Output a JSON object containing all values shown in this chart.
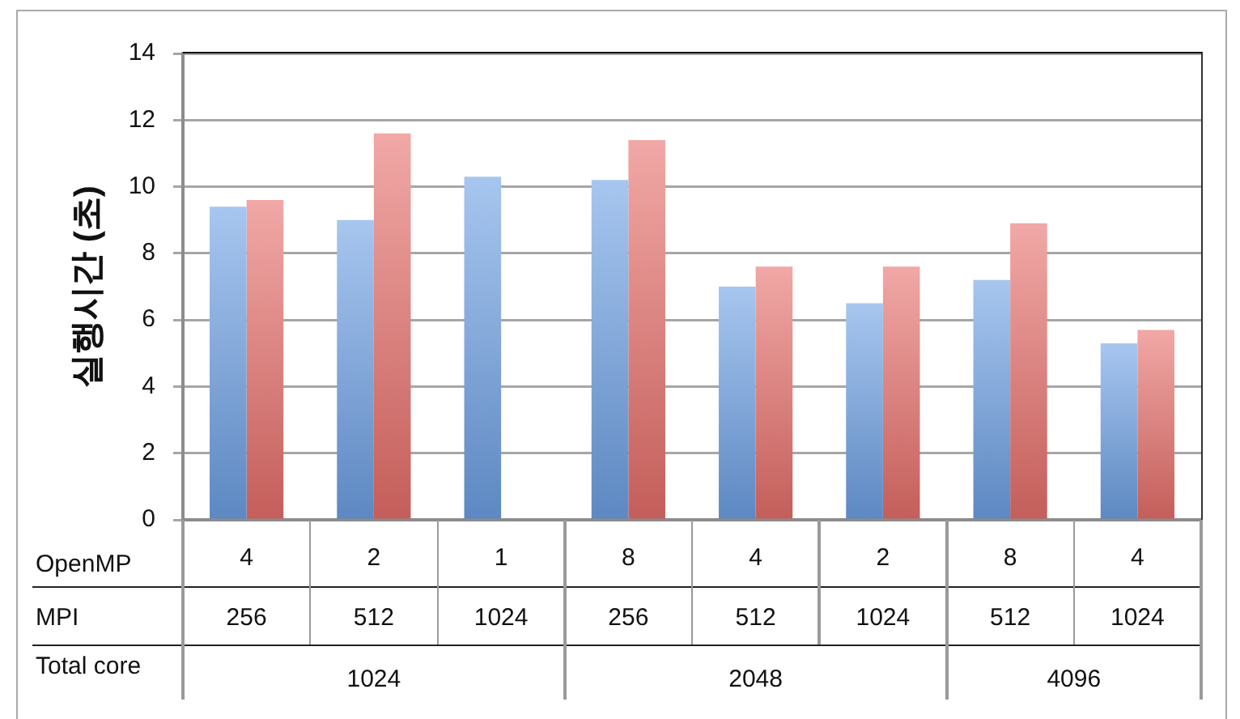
{
  "chart_data": {
    "type": "bar",
    "ylabel": "실행시간 (초)",
    "xlabel": "OpenMP",
    "categories": [
      "4",
      "2",
      "1",
      "8",
      "4",
      "2",
      "8",
      "4"
    ],
    "series": [
      {
        "color": "#6da0e4",
        "values": [
          9.4,
          9.0,
          10.3,
          10.2,
          7.0,
          6.5,
          7.2,
          5.3
        ]
      },
      {
        "color": "#e76e6a",
        "values": [
          9.6,
          11.6,
          null,
          11.4,
          7.6,
          7.6,
          8.9,
          5.7
        ]
      }
    ],
    "ylim": [
      0,
      14
    ],
    "yticks": [
      0,
      2,
      4,
      6,
      8,
      10,
      12,
      14
    ],
    "grid": "y",
    "annotations": [
      "MPI",
      "256",
      "512",
      "1024",
      "256",
      "512",
      "1024",
      "512",
      "1024",
      "Total core",
      "1024",
      "2048",
      "4096"
    ]
  }
}
